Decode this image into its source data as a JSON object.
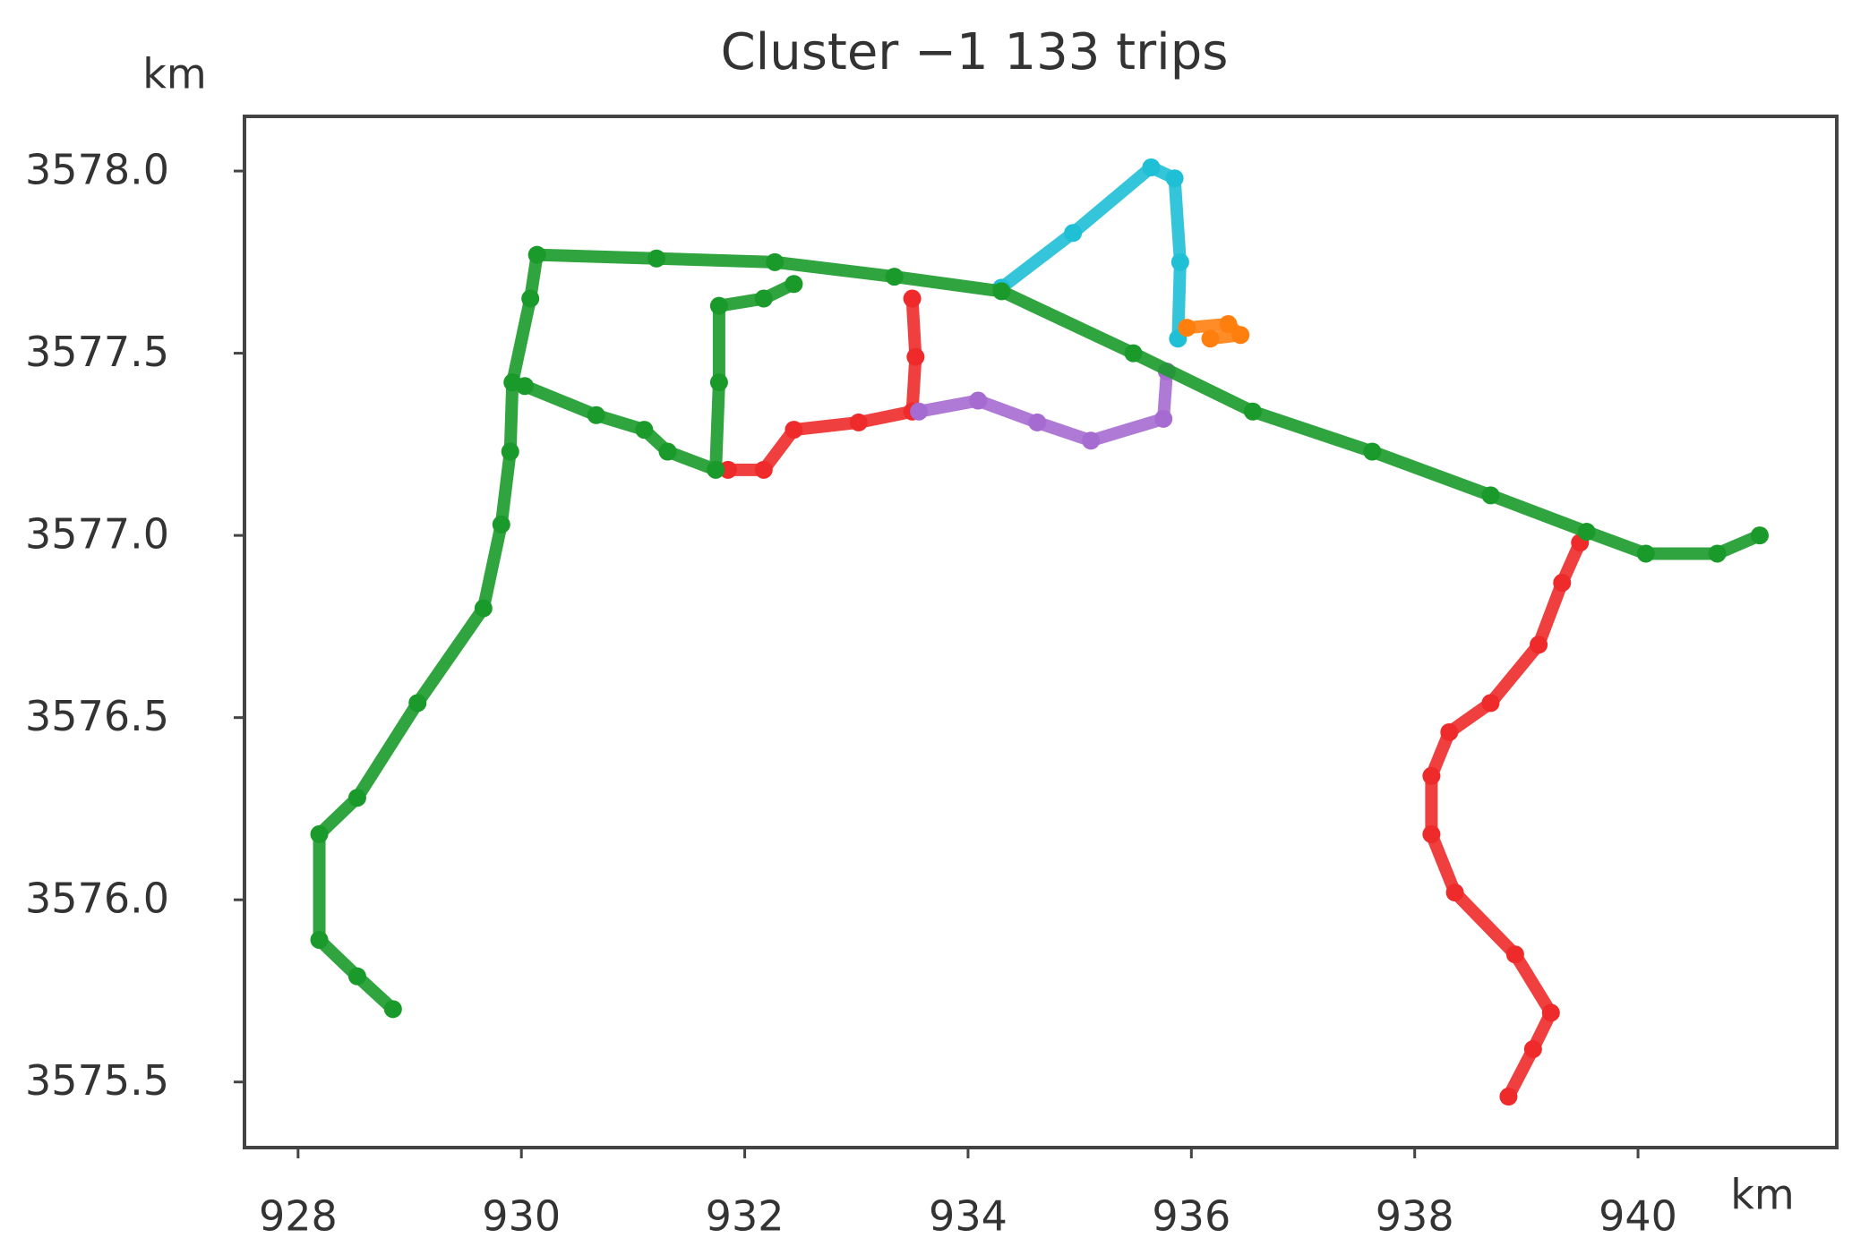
{
  "chart_data": {
    "type": "scatter",
    "title": "Cluster −1 133 trips",
    "xlabel": "km",
    "ylabel": "km",
    "xlim": [
      927.52,
      941.78
    ],
    "ylim": [
      3575.32,
      3578.15
    ],
    "xticks": [
      928,
      930,
      932,
      934,
      936,
      938,
      940
    ],
    "yticks": [
      {
        "value": 3578,
        "label": "3578.0"
      },
      {
        "value": 3577.5,
        "label": "3577.5"
      },
      {
        "value": 3577,
        "label": "3577.0"
      },
      {
        "value": 3576.5,
        "label": "3576.5"
      },
      {
        "value": 3576,
        "label": "3576.0"
      },
      {
        "value": 3575.5,
        "label": "3575.5"
      }
    ],
    "grid": false,
    "series": [
      {
        "color": "#ee2a2a",
        "x": [
          938.84,
          939.06,
          939.22,
          938.9,
          938.36,
          938.15,
          938.15,
          938.31,
          938.68,
          939.11,
          939.32,
          939.48,
          null,
          931.85,
          932.17,
          932.44,
          933.02,
          933.5,
          933.53,
          933.5
        ],
        "values": [
          3575.46,
          3575.59,
          3575.69,
          3575.85,
          3576.02,
          3576.18,
          3576.34,
          3576.46,
          3576.54,
          3576.7,
          3576.87,
          3576.98,
          null,
          3577.18,
          3577.18,
          3577.29,
          3577.31,
          3577.34,
          3577.49,
          3577.65
        ]
      },
      {
        "color": "#1fbfd6",
        "x": [
          934.3,
          934.94,
          935.64,
          935.85,
          935.9,
          935.88
        ],
        "values": [
          3577.68,
          3577.83,
          3578.01,
          3577.98,
          3577.75,
          3577.54
        ]
      },
      {
        "color": "#a66bd0",
        "x": [
          933.56,
          934.09,
          934.62,
          935.1,
          935.75,
          935.78
        ],
        "values": [
          3577.34,
          3577.37,
          3577.31,
          3577.26,
          3577.32,
          3577.45
        ]
      },
      {
        "color": "#ff7f0e",
        "x": [
          935.96,
          936.33,
          936.44,
          936.17
        ],
        "values": [
          3577.57,
          3577.58,
          3577.55,
          3577.54
        ]
      },
      {
        "color": "#1a9a2a",
        "x": [
          928.85,
          928.53,
          928.19,
          928.19,
          928.53,
          929.07,
          929.66,
          929.82,
          929.9,
          929.92,
          930.08,
          930.14,
          931.21,
          932.27,
          933.34,
          934.3,
          935.48,
          936.55,
          937.62,
          938.68,
          939.54,
          940.07,
          940.71,
          941.09,
          null,
          930.03,
          930.67,
          931.1,
          931.31,
          931.74,
          931.77,
          931.77,
          932.17,
          932.44
        ],
        "values": [
          3575.7,
          3575.79,
          3575.89,
          3576.18,
          3576.28,
          3576.54,
          3576.8,
          3577.03,
          3577.23,
          3577.42,
          3577.65,
          3577.77,
          3577.76,
          3577.75,
          3577.71,
          3577.67,
          3577.5,
          3577.34,
          3577.23,
          3577.11,
          3577.01,
          3576.95,
          3576.95,
          3577.0,
          null,
          3577.41,
          3577.33,
          3577.29,
          3577.23,
          3577.18,
          3577.42,
          3577.63,
          3577.65,
          3577.69
        ]
      }
    ]
  }
}
